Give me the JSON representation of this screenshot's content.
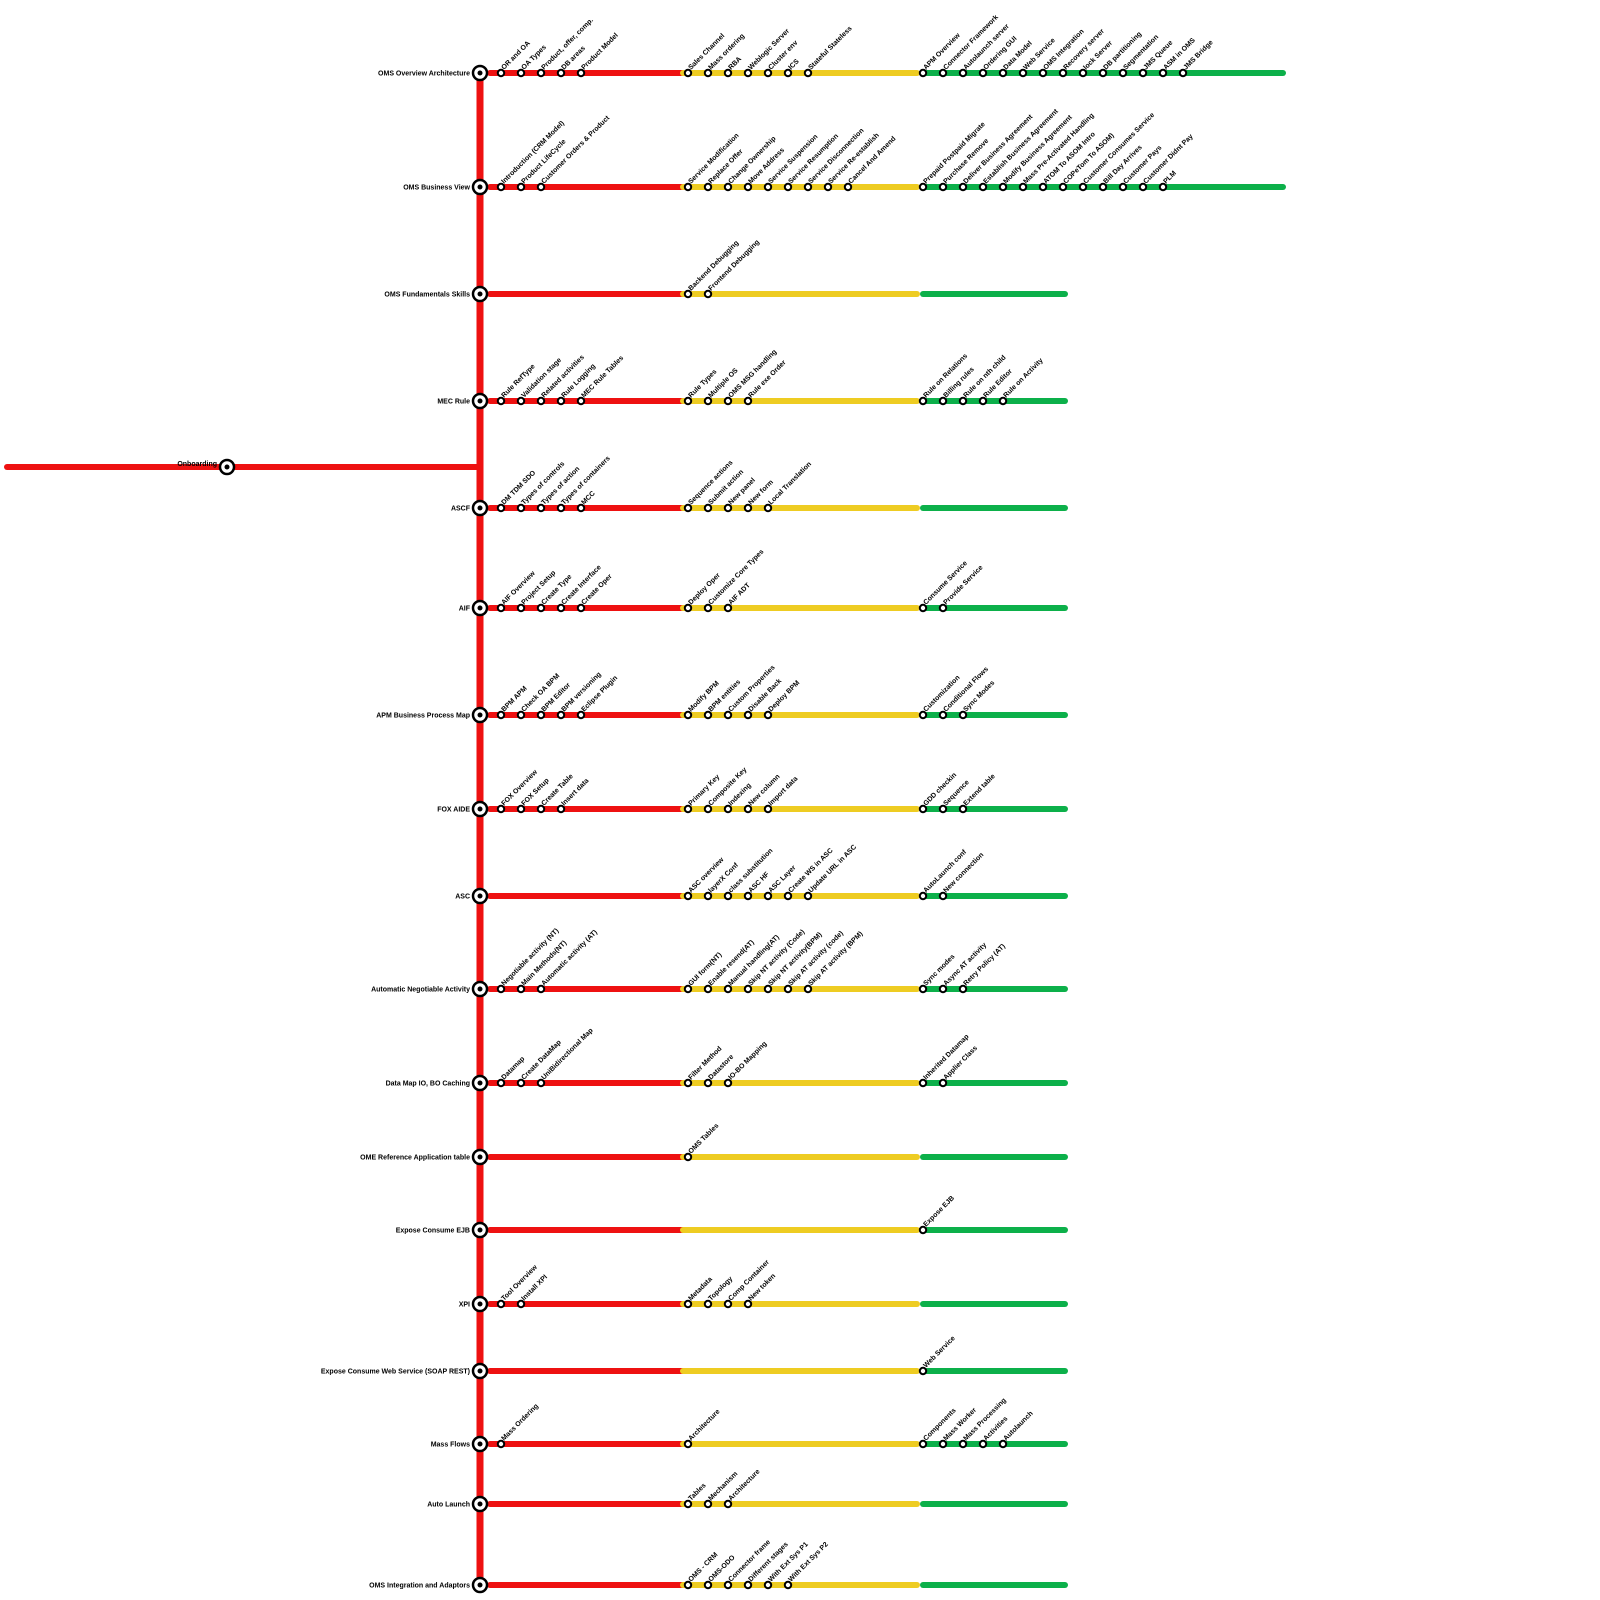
{
  "colors": {
    "stage1": "#ee1111",
    "stage2": "#eecc22",
    "stage3": "#0cb04a",
    "hub": "#ee1111"
  },
  "origin": {
    "label": "Onboarding"
  },
  "tracks": [
    {
      "label": "OMS Overview  Architecture",
      "green_to_end": true,
      "red": [
        "OR and OA",
        "OA Types",
        "Product, offer, comp.",
        "DB areas",
        "Product Model"
      ],
      "yellow": [
        "Sales Channel",
        "Mass ordering",
        "RBA",
        "Weblogic Server",
        "Cluster env",
        "ICS",
        "Stateful  Stateless"
      ],
      "green": [
        "APM Overview",
        "Connector Framework",
        "Autolaunch server",
        "Ordering GUI",
        "Data Model",
        "Web Service",
        "OMS Integration",
        "Recovery server",
        "lock Server",
        "DB partitioning",
        "Segmentation",
        "JMS Queue",
        "ASM in OMS",
        "JMS Bridge"
      ]
    },
    {
      "label": "OMS Business View",
      "green_to_end": true,
      "red": [
        "Introduction (CRM Model)",
        "Product LifeCycle",
        "Customer Orders & Product"
      ],
      "yellow": [
        "Service Modification",
        "Replace Offer",
        "Change Ownership",
        "Move Address",
        "Service Suspension",
        "Service Resumption",
        "Service Disconnection",
        "Service Re-establish",
        "Cancel And Amend"
      ],
      "green": [
        "Prepaid Postpaid Migrate",
        "Purchase Remove",
        "Deliver Business Agreement",
        "Establish Business Agreement",
        "Modify Business Agreement",
        "Mass Pre-Activated  Handling",
        "ATOM To ASOM Intro",
        "COPeTom To ASOM)",
        "Customer Consumes Service",
        "Bill Day Arrives",
        "Customer Pays",
        "Customer Didnt Pay",
        "PLM"
      ]
    },
    {
      "label": "OMS Fundamentals Skills",
      "red": [],
      "yellow": [
        "Backend Debugging",
        "Frontend Debugging"
      ],
      "green": []
    },
    {
      "label": "MEC Rule",
      "red": [
        "Rule RefType",
        "Validation stage",
        "Related activities",
        "Rule Logging",
        "MEC Rule Tables"
      ],
      "yellow": [
        "Rule Types",
        "Multiple OS",
        "OMS MSG handling",
        "Rule exe Order"
      ],
      "green": [
        "Rule on Relations",
        "Billing rules",
        "Rule on nth child",
        "Rule Editor",
        "Rule on Activity"
      ]
    },
    {
      "label": "ASCF",
      "red": [
        "DM TDM SDO",
        "Types of controls",
        "Types of action",
        "Types of containers",
        "MCC"
      ],
      "yellow": [
        "Sequence actions",
        "Submit action",
        "New panel",
        "New form",
        "Local Translation"
      ],
      "green": []
    },
    {
      "label": "AIF",
      "red": [
        "AIF Overview",
        "Project Setup",
        "Create Type",
        "Create Interface",
        "Create Oper"
      ],
      "yellow": [
        "Deploy Oper",
        "Customize Core Types",
        "AIF ADT"
      ],
      "green": [
        "Consume Service",
        "Provide Service"
      ]
    },
    {
      "label": "APM  Business Process Map",
      "red": [
        "BPM  APM",
        "Check OA BPM",
        "BPM Editor",
        "BPM versioning",
        "Eclipse Plugin"
      ],
      "yellow": [
        "Modify BPM",
        "BPM entities",
        "Custom Properties",
        "Disable Back",
        "Deploy BPM"
      ],
      "green": [
        "Customization",
        "Conditional Flows",
        "Sync Modes"
      ]
    },
    {
      "label": "FOX AIDE",
      "red": [
        "FOX Overview",
        "FOX Setup",
        "Create Table",
        "Insert data"
      ],
      "yellow": [
        "Primary Key",
        "Composite Key",
        "Indexing",
        "New column",
        "Import data"
      ],
      "green": [
        "GDD checkin",
        "Sequence",
        "Extend table"
      ]
    },
    {
      "label": "ASC",
      "red": [],
      "yellow": [
        "ASC overview",
        "layerX Conf",
        "class substitution",
        "ASC HF",
        "ASC Layer",
        "Create WS in ASC",
        "Update URL in ASC"
      ],
      "green": [
        "AutoLaunch conf",
        "New connection"
      ]
    },
    {
      "label": "Automatic  Negotiable Activity",
      "red": [
        "Negotiable activity (NT)",
        "Main Methods(NT)",
        "Automatic activity (AT)"
      ],
      "yellow": [
        "GUI form(NT)",
        "Enable resend(AT)",
        "Manual handling(AT)",
        "Skip NT activity (Code)",
        "Skip NT activity(BPM)",
        "Skip AT activity (code)",
        "Skip AT activity (BPM)"
      ],
      "green": [
        "Sync modes",
        "Async  AT activity",
        "Retry Policy (AT)"
      ]
    },
    {
      "label": "Data Map  IO, BO Caching",
      "red": [
        "Datamap",
        "Create DataMap",
        "UniBidirectional Map"
      ],
      "yellow": [
        "Filter Method",
        "Datastore",
        "IO-BO Mapping"
      ],
      "green": [
        "Inherited Datamap",
        "Applier Class"
      ]
    },
    {
      "label": "OME Reference  Application table",
      "red": [],
      "yellow": [
        "OMS Tables"
      ],
      "green": []
    },
    {
      "label": "Expose Consume EJB",
      "red": [],
      "yellow": [],
      "green": [
        "Expose EJB"
      ]
    },
    {
      "label": "XPI",
      "red": [
        "Tool Overview",
        "Install XPI"
      ],
      "yellow": [
        "Metadata",
        "Topology",
        "Comp  Container",
        "New token"
      ],
      "green": []
    },
    {
      "label": "Expose Consume Web Service (SOAP REST)",
      "red": [],
      "yellow": [],
      "green": [
        "Web Service"
      ]
    },
    {
      "label": "Mass Flows",
      "red": [
        "Mass Ordering"
      ],
      "yellow": [
        "Architecture"
      ],
      "green": [
        "Components",
        "Mass Worker",
        "Mass Processing",
        "Activities",
        "Autolaunch"
      ]
    },
    {
      "label": "Auto Launch",
      "red": [],
      "yellow": [
        "Tables",
        "Mechanism",
        "Architecture"
      ],
      "green": []
    },
    {
      "label": "OMS Integration and Adaptors",
      "red": [],
      "yellow": [
        "OMS - CRM",
        "OMS-ODO",
        "Connector frame",
        "Different stages",
        "With Ext Sys P1",
        "With Ext Sys P2"
      ],
      "green": []
    }
  ]
}
